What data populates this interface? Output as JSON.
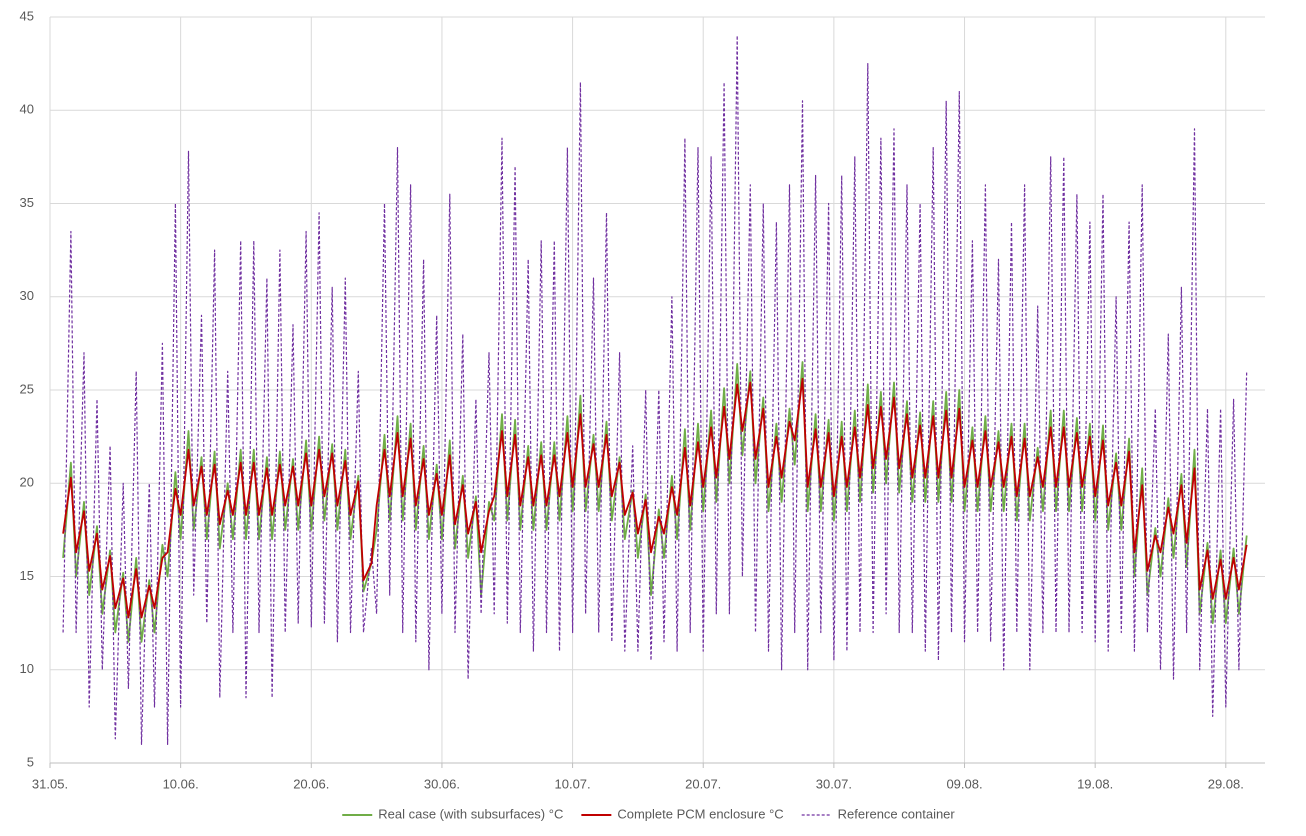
{
  "chart_data": {
    "type": "line",
    "xlim": [
      0,
      93
    ],
    "xticks": [
      {
        "value": 0,
        "label": "31.05."
      },
      {
        "value": 10,
        "label": "10.06."
      },
      {
        "value": 20,
        "label": "20.06."
      },
      {
        "value": 30,
        "label": "30.06."
      },
      {
        "value": 40,
        "label": "10.07."
      },
      {
        "value": 50,
        "label": "20.07."
      },
      {
        "value": 60,
        "label": "30.07."
      },
      {
        "value": 70,
        "label": "09.08."
      },
      {
        "value": 80,
        "label": "19.08."
      },
      {
        "value": 90,
        "label": "29.08."
      }
    ],
    "ylim": [
      5,
      45
    ],
    "yticks": [
      5,
      10,
      15,
      20,
      25,
      30,
      35,
      40,
      45
    ],
    "grid": true,
    "legend": "bottom",
    "x": [
      1,
      1.6,
      2,
      2.6,
      3,
      3.6,
      4,
      4.6,
      5,
      5.6,
      6,
      6.6,
      7,
      7.6,
      8,
      8.6,
      9,
      9.6,
      10,
      10.6,
      11,
      11.6,
      12,
      12.6,
      13,
      13.6,
      14,
      14.6,
      15,
      15.6,
      16,
      16.6,
      17,
      17.6,
      18,
      18.6,
      19,
      19.6,
      20,
      20.6,
      21,
      21.6,
      22,
      22.6,
      23,
      23.6,
      24,
      24.6,
      25,
      25.6,
      26,
      26.6,
      27,
      27.6,
      28,
      28.6,
      29,
      29.6,
      30,
      30.6,
      31,
      31.6,
      32,
      32.6,
      33,
      33.6,
      34,
      34.6,
      35,
      35.6,
      36,
      36.6,
      37,
      37.6,
      38,
      38.6,
      39,
      39.6,
      40,
      40.6,
      41,
      41.6,
      42,
      42.6,
      43,
      43.6,
      44,
      44.6,
      45,
      45.6,
      46,
      46.6,
      47,
      47.6,
      48,
      48.6,
      49,
      49.6,
      50,
      50.6,
      51,
      51.6,
      52,
      52.6,
      53,
      53.6,
      54,
      54.6,
      55,
      55.6,
      56,
      56.6,
      57,
      57.6,
      58,
      58.6,
      59,
      59.6,
      60,
      60.6,
      61,
      61.6,
      62,
      62.6,
      63,
      63.6,
      64,
      64.6,
      65,
      65.6,
      66,
      66.6,
      67,
      67.6,
      68,
      68.6,
      69,
      69.6,
      70,
      70.6,
      71,
      71.6,
      72,
      72.6,
      73,
      73.6,
      74,
      74.6,
      75,
      75.6,
      76,
      76.6,
      77,
      77.6,
      78,
      78.6,
      79,
      79.6,
      80,
      80.6,
      81,
      81.6,
      82,
      82.6,
      83,
      83.6,
      84,
      84.6,
      85,
      85.6,
      86,
      86.6,
      87,
      87.6,
      88,
      88.6,
      89,
      89.6,
      90,
      90.6,
      91,
      91.6
    ],
    "series": [
      {
        "name": "Real case (with subsurfaces) °C",
        "color": "#70ad47",
        "dashed": false,
        "values": [
          16,
          21.1,
          15,
          19,
          14,
          17.7,
          13,
          16.4,
          12,
          15.2,
          11.5,
          16,
          11.5,
          14.8,
          12,
          16.7,
          15,
          20.6,
          17,
          22.8,
          17.5,
          21.4,
          17,
          21.7,
          16.5,
          20,
          17,
          21.8,
          17,
          21.8,
          17,
          21.4,
          17,
          21.7,
          17.5,
          21.3,
          17.5,
          22.3,
          17.5,
          22.5,
          18,
          22.1,
          17.5,
          21.8,
          17,
          20.4,
          14.2,
          15.7,
          17.5,
          22.6,
          18,
          23.6,
          18,
          23.2,
          17.5,
          22,
          17,
          21,
          17,
          22.3,
          16.5,
          20.4,
          16,
          19.3,
          14,
          19,
          18,
          23.7,
          18,
          23.4,
          17.5,
          22,
          17.5,
          22.2,
          17.5,
          22.2,
          18,
          23.6,
          18.5,
          24.7,
          18.5,
          22.6,
          18.5,
          23.3,
          18,
          21.4,
          17,
          19.6,
          16,
          19.4,
          14,
          18.6,
          16,
          20.4,
          17,
          22.9,
          17.5,
          23.2,
          18.5,
          23.9,
          19,
          25.1,
          20,
          26.4,
          21.5,
          26,
          20,
          24.6,
          18.5,
          23.2,
          19,
          24,
          21,
          26.5,
          18.5,
          23.7,
          18.5,
          23.4,
          18,
          23.3,
          18.5,
          23.9,
          19,
          25.3,
          19.5,
          24.9,
          20,
          25.4,
          19.5,
          24.4,
          19,
          23.8,
          19,
          24.4,
          19,
          24.9,
          19,
          25,
          18.5,
          23,
          18.5,
          23.6,
          18.5,
          22.8,
          18.5,
          23.2,
          18,
          23.2,
          18,
          21.9,
          18.5,
          23.9,
          18.5,
          23.9,
          18.5,
          23.5,
          18.5,
          23.2,
          18,
          23.1,
          17.5,
          21.6,
          17.5,
          22.4,
          15,
          20.8,
          14,
          17.6,
          15,
          19.2,
          16,
          20.5,
          15.5,
          21.8,
          13,
          16.8,
          12.5,
          16.4,
          12.5,
          16.5,
          13,
          17.2
        ]
      },
      {
        "name": "Complete PCM enclosure °C",
        "color": "#c00000",
        "dashed": false,
        "values": [
          17.3,
          20.3,
          16.3,
          18.5,
          15.3,
          17.3,
          14.3,
          16.1,
          13.3,
          14.9,
          12.8,
          15.4,
          12.8,
          14.5,
          13.3,
          16,
          16.3,
          19.7,
          18.3,
          21.8,
          18.8,
          20.9,
          18.3,
          21,
          17.8,
          19.6,
          18.3,
          21.1,
          18.3,
          21.1,
          18.3,
          20.8,
          18.3,
          21,
          18.8,
          20.9,
          18.8,
          21.6,
          18.8,
          21.8,
          19.3,
          21.6,
          18.8,
          21.2,
          18.3,
          20.1,
          14.8,
          15.7,
          18.8,
          21.8,
          19.3,
          22.7,
          19.3,
          22.4,
          18.8,
          21.3,
          18.3,
          20.5,
          18.3,
          21.5,
          17.8,
          19.9,
          17.3,
          19,
          16.3,
          18.5,
          19.3,
          22.8,
          19.3,
          22.6,
          18.8,
          21.4,
          18.8,
          21.5,
          18.8,
          21.5,
          19.3,
          22.7,
          19.8,
          23.7,
          19.8,
          22.1,
          19.8,
          22.6,
          19.3,
          21.1,
          18.3,
          19.5,
          17.3,
          19.1,
          16.3,
          18.2,
          17.3,
          19.8,
          18.3,
          21.9,
          18.8,
          22.2,
          19.8,
          23,
          20.3,
          24.1,
          21.3,
          25.3,
          22.8,
          25.4,
          21.3,
          24,
          19.8,
          22.5,
          20.3,
          23.3,
          22.3,
          25.6,
          19.8,
          22.9,
          19.8,
          22.7,
          19.3,
          22.5,
          19.8,
          23,
          20.3,
          24.2,
          20.8,
          24.1,
          21.3,
          24.6,
          20.8,
          23.7,
          20.3,
          23.1,
          20.3,
          23.6,
          20.3,
          23.9,
          20.3,
          24,
          19.8,
          22.3,
          19.8,
          22.8,
          19.8,
          22.2,
          19.8,
          22.5,
          19.3,
          22.4,
          19.3,
          21.4,
          19.8,
          23,
          19.8,
          23,
          19.8,
          22.7,
          19.8,
          22.5,
          19.3,
          22.3,
          18.8,
          21.1,
          18.8,
          21.7,
          16.3,
          19.9,
          15.3,
          17.2,
          16.3,
          18.7,
          17.3,
          19.9,
          16.8,
          20.8,
          14.3,
          16.4,
          13.8,
          15.9,
          13.8,
          16,
          14.3,
          16.7
        ]
      },
      {
        "name": "Reference container",
        "color": "#7030a0",
        "dashed": true,
        "values": [
          12,
          33.5,
          12,
          27,
          8,
          24.5,
          10,
          22,
          6.3,
          20,
          9,
          26,
          6,
          20,
          8,
          27.5,
          6,
          35,
          8,
          37.8,
          14,
          29,
          12.5,
          32.5,
          8.5,
          26,
          12,
          33,
          8.5,
          33,
          12,
          31,
          8.5,
          32.5,
          12,
          28.5,
          12.5,
          33.5,
          12.3,
          34.5,
          12.5,
          30.5,
          11.5,
          31,
          12,
          26,
          12,
          16.5,
          13,
          35,
          14,
          38,
          12,
          36,
          11.5,
          32,
          10,
          29,
          13,
          35.5,
          12,
          28,
          9.5,
          24.5,
          13,
          27,
          13,
          38.5,
          12.5,
          37,
          12,
          32,
          11,
          33,
          12,
          33,
          11,
          38,
          12,
          41.5,
          13,
          31,
          12,
          34.5,
          11.5,
          27,
          11,
          22,
          11,
          25,
          10.5,
          25,
          11.5,
          30,
          11,
          38.5,
          12,
          38,
          11,
          37.5,
          13,
          41.5,
          13,
          44,
          15,
          36,
          12,
          35,
          11,
          34,
          10,
          36,
          12,
          40.5,
          10,
          36.5,
          12,
          35,
          10.5,
          36.5,
          11,
          37.5,
          12,
          42.5,
          12,
          38.5,
          13,
          39,
          12,
          36,
          12,
          35,
          11,
          38,
          10.5,
          40.5,
          12,
          41,
          11.5,
          33,
          12,
          36,
          11.5,
          32,
          10,
          34,
          12,
          36,
          10,
          29.5,
          12,
          37.5,
          12,
          37.5,
          12,
          35.5,
          12,
          34,
          11.5,
          35.5,
          11,
          30,
          12,
          34,
          11,
          36,
          12,
          24,
          10,
          28,
          9.5,
          30.5,
          12,
          39,
          10,
          24,
          7.5,
          24,
          8,
          24.5,
          10,
          26
        ]
      }
    ]
  }
}
